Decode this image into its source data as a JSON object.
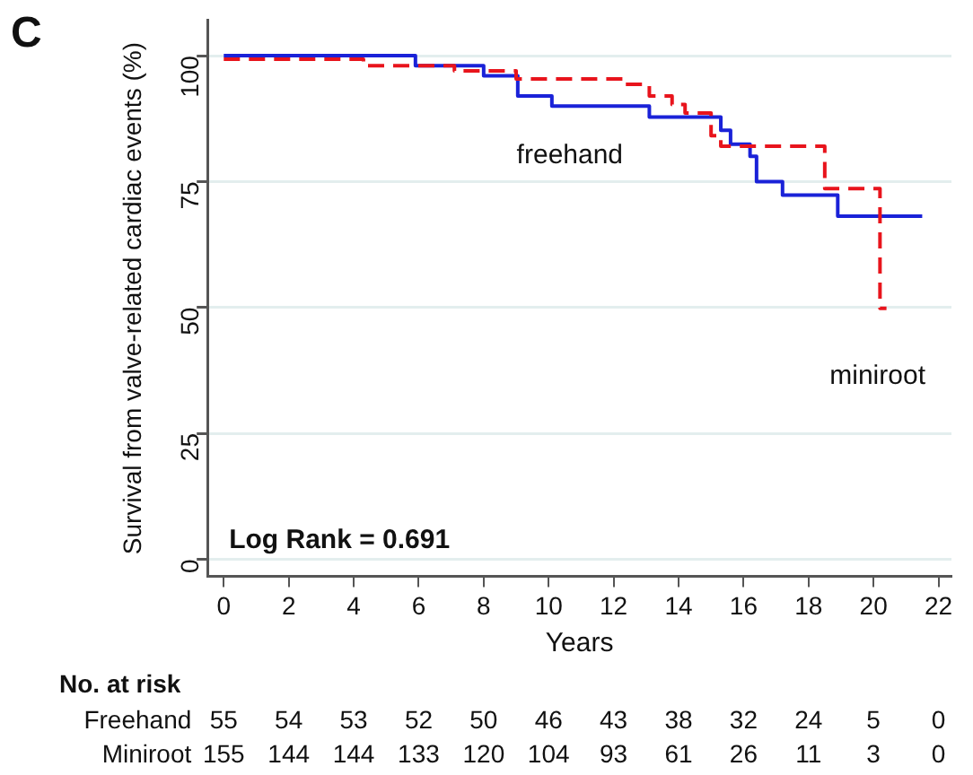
{
  "chart_data": {
    "type": "step",
    "xlabel": "Years",
    "ylabel": "Survival from valve-related cardiac events (%)",
    "xlim": [
      -0.5,
      22.4
    ],
    "xticks": [
      0,
      2,
      4,
      6,
      8,
      10,
      12,
      14,
      16,
      18,
      20,
      22
    ],
    "ylim": [
      -3.4,
      107
    ],
    "yticks": [
      0,
      25,
      50,
      75,
      100
    ],
    "grid": "y",
    "legend": false,
    "marker": "none",
    "series": [
      {
        "name": "freehand",
        "color": "#1a22d8",
        "line_style": "solid",
        "x": [
          0,
          5.9,
          8.0,
          9.05,
          10.1,
          13.1,
          15.3,
          15.6,
          16.2,
          16.4,
          17.2,
          18.9,
          21.5
        ],
        "values": [
          100,
          98,
          96,
          92,
          90,
          87.8,
          85.2,
          82.4,
          80,
          75,
          72.3,
          68.1,
          68.1
        ]
      },
      {
        "name": "miniroot",
        "color": "#e8141c",
        "line_style": "dashed",
        "x": [
          0,
          4.3,
          7.1,
          9.0,
          12.3,
          13.1,
          13.8,
          14.2,
          15.0,
          15.3,
          18.5,
          20.2,
          20.4
        ],
        "values": [
          99.3,
          98,
          97,
          95.4,
          94.3,
          92,
          90.3,
          88.6,
          84.1,
          82,
          73.6,
          49.8,
          49.8
        ]
      }
    ],
    "annotations": [
      "C",
      "Log Rank = 0.691",
      "No. at risk",
      "Freehand 55 54 53 52 50 46 43 38 32 24 5 0",
      "Miniroot 155 144 144 133 120 104 93 61 26 11 3 0"
    ]
  }
}
